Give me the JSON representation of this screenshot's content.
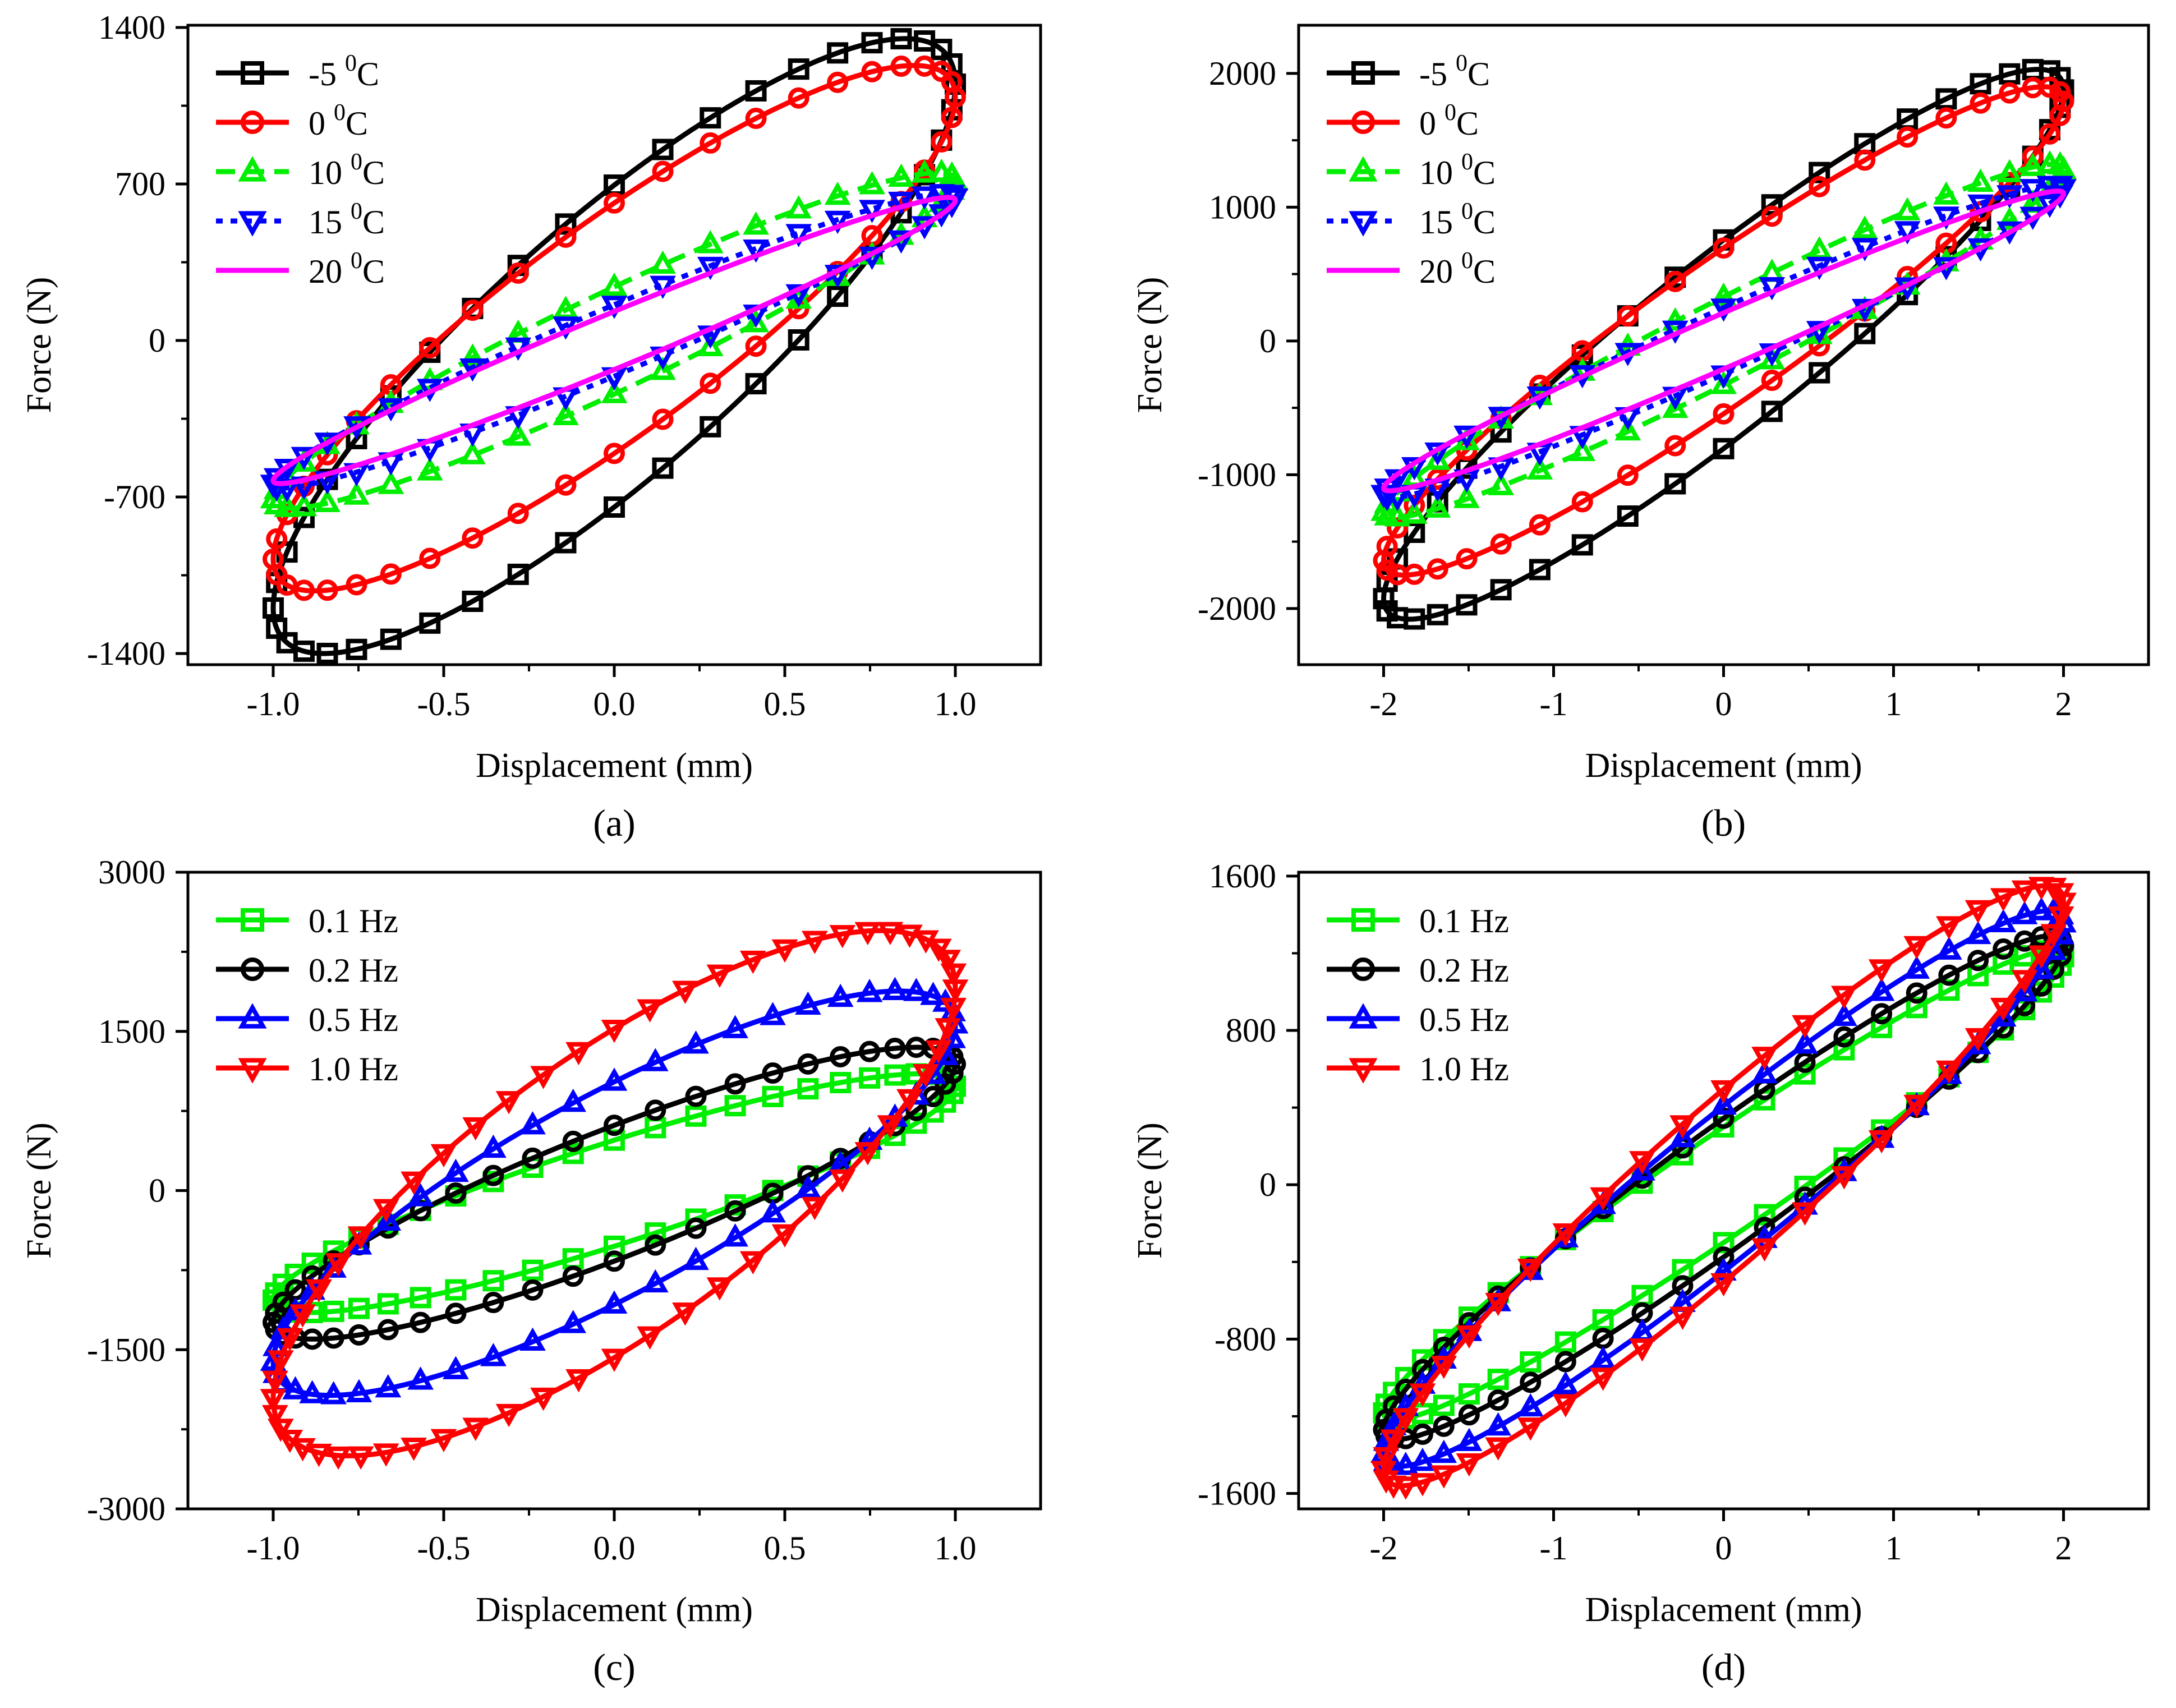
{
  "chart_data": [
    {
      "panel": "a",
      "caption": "(a)",
      "type": "line",
      "xlabel": "Displacement (mm)",
      "ylabel": "Force (N)",
      "xlim": [
        -1.25,
        1.25
      ],
      "ylim": [
        -1450,
        1410
      ],
      "xticks": [
        -1.0,
        -0.5,
        0.0,
        0.5,
        1.0
      ],
      "xtick_labels": [
        "-1.0",
        "-0.5",
        "0.0",
        "0.5",
        "1.0"
      ],
      "yticks": [
        -1400,
        -700,
        0,
        700,
        1400
      ],
      "ytick_labels": [
        "-1400",
        "-700",
        "0",
        "700",
        "1400"
      ],
      "legend_position": "top-left",
      "series": [
        {
          "name": "-5",
          "unit": "0C",
          "color": "#000000",
          "marker": "square",
          "dash": "solid",
          "amplitude": 1.0,
          "force_max": 1350,
          "force_min": -1400,
          "force_at_zero_up": 720,
          "force_at_zero_down": -720,
          "markers": 44
        },
        {
          "name": " 0",
          "unit": "0C",
          "color": "#ff0000",
          "marker": "circle",
          "dash": "solid",
          "amplitude": 1.0,
          "force_max": 1230,
          "force_min": -1120,
          "force_at_zero_up": 560,
          "force_at_zero_down": -560,
          "markers": 44
        },
        {
          "name": "10",
          "unit": "0C",
          "color": "#00ee00",
          "marker": "triangle-up",
          "dash": "dash",
          "amplitude": 1.0,
          "force_max": 750,
          "force_min": -750,
          "force_at_zero_up": 240,
          "force_at_zero_down": -240,
          "markers": 44
        },
        {
          "name": "15",
          "unit": "0C",
          "color": "#0000ff",
          "marker": "triangle-down",
          "dash": "dot",
          "amplitude": 1.0,
          "force_max": 660,
          "force_min": -660,
          "force_at_zero_up": 160,
          "force_at_zero_down": -160,
          "markers": 44
        },
        {
          "name": "20",
          "unit": "0C",
          "color": "#ff00ff",
          "marker": "none",
          "dash": "solid",
          "amplitude": 1.0,
          "force_max": 640,
          "force_min": -640,
          "force_at_zero_up": 130,
          "force_at_zero_down": -130,
          "markers": 0
        }
      ]
    },
    {
      "panel": "b",
      "caption": "(b)",
      "type": "line",
      "xlabel": "Displacement (mm)",
      "ylabel": "Force (N)",
      "xlim": [
        -2.5,
        2.5
      ],
      "ylim": [
        -2420,
        2360
      ],
      "xticks": [
        -2,
        -1,
        0,
        1,
        2
      ],
      "xtick_labels": [
        "-2",
        "-1",
        "0",
        "1",
        "2"
      ],
      "yticks": [
        -2000,
        -1000,
        0,
        1000,
        2000
      ],
      "ytick_labels": [
        "-2000",
        "-1000",
        "0",
        "1000",
        "2000"
      ],
      "legend_position": "top-left",
      "series": [
        {
          "name": "-5",
          "unit": "0C",
          "color": "#000000",
          "marker": "square",
          "dash": "solid",
          "amplitude": 2.0,
          "force_max": 2030,
          "force_min": -2080,
          "force_at_zero_up": 780,
          "force_at_zero_down": -780,
          "markers": 44
        },
        {
          "name": " 0",
          "unit": "0C",
          "color": "#ff0000",
          "marker": "circle",
          "dash": "solid",
          "amplitude": 2.0,
          "force_max": 1900,
          "force_min": -1750,
          "force_at_zero_up": 620,
          "force_at_zero_down": -620,
          "markers": 44
        },
        {
          "name": "10",
          "unit": "0C",
          "color": "#00ee00",
          "marker": "triangle-up",
          "dash": "dash",
          "amplitude": 2.0,
          "force_max": 1320,
          "force_min": -1320,
          "force_at_zero_up": 330,
          "force_at_zero_down": -330,
          "markers": 44
        },
        {
          "name": "15",
          "unit": "0C",
          "color": "#0000ff",
          "marker": "triangle-down",
          "dash": "dot",
          "amplitude": 2.0,
          "force_max": 1170,
          "force_min": -1170,
          "force_at_zero_up": 250,
          "force_at_zero_down": -250,
          "markers": 44
        },
        {
          "name": "20",
          "unit": "0C",
          "color": "#ff00ff",
          "marker": "none",
          "dash": "solid",
          "amplitude": 2.0,
          "force_max": 1120,
          "force_min": -1120,
          "force_at_zero_up": 210,
          "force_at_zero_down": -210,
          "markers": 0
        }
      ]
    },
    {
      "panel": "c",
      "caption": "(c)",
      "type": "line",
      "xlabel": "Displacement (mm)",
      "ylabel": "Force (N)",
      "xlim": [
        -1.25,
        1.25
      ],
      "ylim": [
        -3000,
        3000
      ],
      "xticks": [
        -1.0,
        -0.5,
        0.0,
        0.5,
        1.0
      ],
      "xtick_labels": [
        "-1.0",
        "-0.5",
        "0.0",
        "0.5",
        "1.0"
      ],
      "yticks": [
        -3000,
        -1500,
        0,
        1500,
        3000
      ],
      "ytick_labels": [
        "-3000",
        "-1500",
        "0",
        "1500",
        "3000"
      ],
      "legend_position": "top-left",
      "series": [
        {
          "name": "0.1",
          "unit": "Hz",
          "color": "#00ee00",
          "marker": "square",
          "dash": "solid",
          "amplitude": 1.0,
          "force_max": 1100,
          "force_min": -1150,
          "force_at_zero_up": 500,
          "force_at_zero_down": -500,
          "markers": 52
        },
        {
          "name": "0.2",
          "unit": "Hz",
          "color": "#000000",
          "marker": "circle",
          "dash": "solid",
          "amplitude": 1.0,
          "force_max": 1350,
          "force_min": -1400,
          "force_at_zero_up": 640,
          "force_at_zero_down": -640,
          "markers": 52
        },
        {
          "name": "0.5",
          "unit": "Hz",
          "color": "#0000ff",
          "marker": "triangle-up",
          "dash": "solid",
          "amplitude": 1.0,
          "force_max": 1880,
          "force_min": -1930,
          "force_at_zero_up": 1050,
          "force_at_zero_down": -1050,
          "markers": 52
        },
        {
          "name": "1.0",
          "unit": "Hz",
          "color": "#ff0000",
          "marker": "triangle-down",
          "dash": "solid",
          "amplitude": 1.0,
          "force_max": 2450,
          "force_min": -2500,
          "force_at_zero_up": 1550,
          "force_at_zero_down": -1550,
          "markers": 60
        }
      ]
    },
    {
      "panel": "d",
      "caption": "(d)",
      "type": "line",
      "xlabel": "Displacement (mm)",
      "ylabel": "Force (N)",
      "xlim": [
        -2.5,
        2.5
      ],
      "ylim": [
        -1680,
        1620
      ],
      "xticks": [
        -2,
        -1,
        0,
        1,
        2
      ],
      "xtick_labels": [
        "-2",
        "-1",
        "0",
        "1",
        "2"
      ],
      "yticks": [
        -1600,
        -800,
        0,
        800,
        1600
      ],
      "ytick_labels": [
        "-1600",
        "-800",
        "0",
        "800",
        "1600"
      ],
      "legend_position": "top-left",
      "series": [
        {
          "name": "0.1",
          "unit": "Hz",
          "color": "#00ee00",
          "marker": "square",
          "dash": "solid",
          "amplitude": 2.0,
          "force_max": 1220,
          "force_min": -1220,
          "force_at_zero_up": 300,
          "force_at_zero_down": -300,
          "markers": 52
        },
        {
          "name": "0.2",
          "unit": "Hz",
          "color": "#000000",
          "marker": "circle",
          "dash": "solid",
          "amplitude": 2.0,
          "force_max": 1290,
          "force_min": -1320,
          "force_at_zero_up": 360,
          "force_at_zero_down": -360,
          "markers": 52
        },
        {
          "name": "0.5",
          "unit": "Hz",
          "color": "#0000ff",
          "marker": "triangle-up",
          "dash": "solid",
          "amplitude": 2.0,
          "force_max": 1420,
          "force_min": -1460,
          "force_at_zero_up": 430,
          "force_at_zero_down": -430,
          "markers": 52
        },
        {
          "name": "1.0",
          "unit": "Hz",
          "color": "#ff0000",
          "marker": "triangle-down",
          "dash": "solid",
          "amplitude": 2.0,
          "force_max": 1550,
          "force_min": -1560,
          "force_at_zero_up": 500,
          "force_at_zero_down": -500,
          "markers": 52
        }
      ]
    }
  ]
}
